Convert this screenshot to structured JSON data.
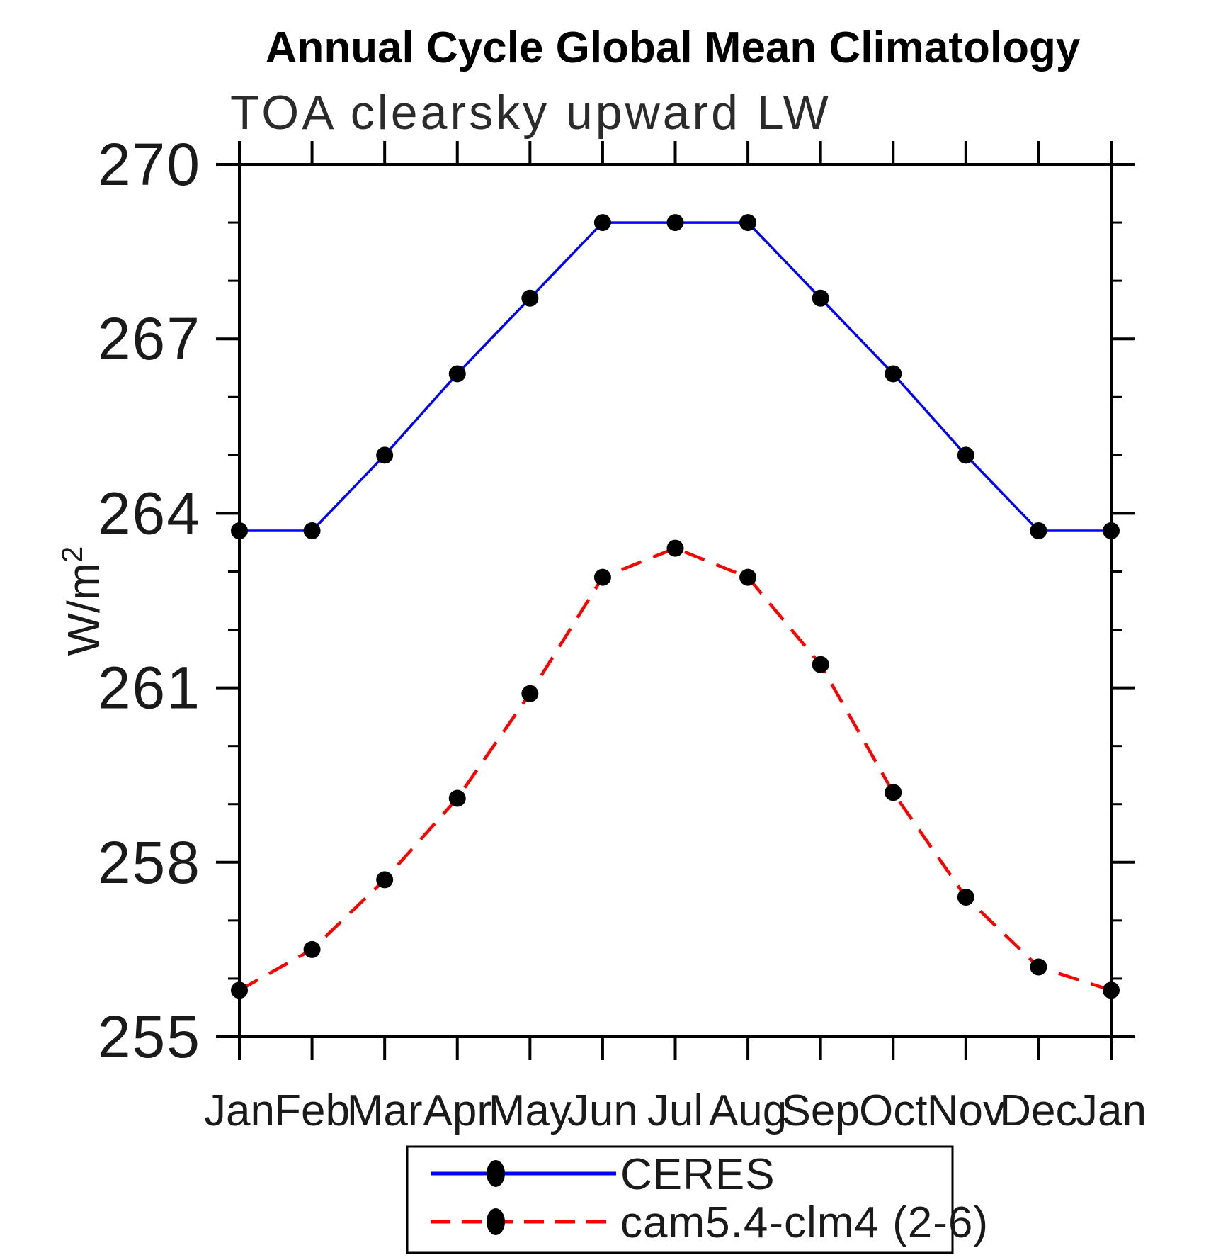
{
  "title": "Annual Cycle Global Mean Climatology",
  "subtitle": "TOA clearsky upward LW",
  "ylabel": "W/m",
  "ylabel_superscript": "2",
  "chart_data": {
    "type": "line",
    "categories": [
      "Jan",
      "Feb",
      "Mar",
      "Apr",
      "May",
      "Jun",
      "Jul",
      "Aug",
      "Sep",
      "Oct",
      "Nov",
      "Dec",
      "Jan"
    ],
    "series": [
      {
        "name": "CERES",
        "color": "#0000ff",
        "line_style": "solid",
        "marker": "black-dot",
        "values": [
          263.7,
          263.7,
          265.0,
          266.4,
          267.7,
          269.0,
          269.0,
          269.0,
          267.7,
          266.4,
          265.0,
          263.7,
          263.7
        ]
      },
      {
        "name": "cam5.4-clm4 (2-6)",
        "color": "#ff0000",
        "line_style": "dashed",
        "marker": "black-dot",
        "values": [
          255.8,
          256.5,
          257.7,
          259.1,
          260.9,
          262.9,
          263.4,
          262.9,
          261.4,
          259.2,
          257.4,
          256.2,
          255.8
        ]
      }
    ],
    "xlabel": "",
    "ylabel": "W/m2",
    "ylim": [
      255,
      270
    ],
    "y_major_ticks": [
      255,
      258,
      261,
      264,
      267,
      270
    ],
    "y_minor_step": 1,
    "grid": false,
    "legend_position": "bottom-center",
    "axis_color": "#000000",
    "marker_color": "#000000",
    "background": "#ffffff"
  }
}
